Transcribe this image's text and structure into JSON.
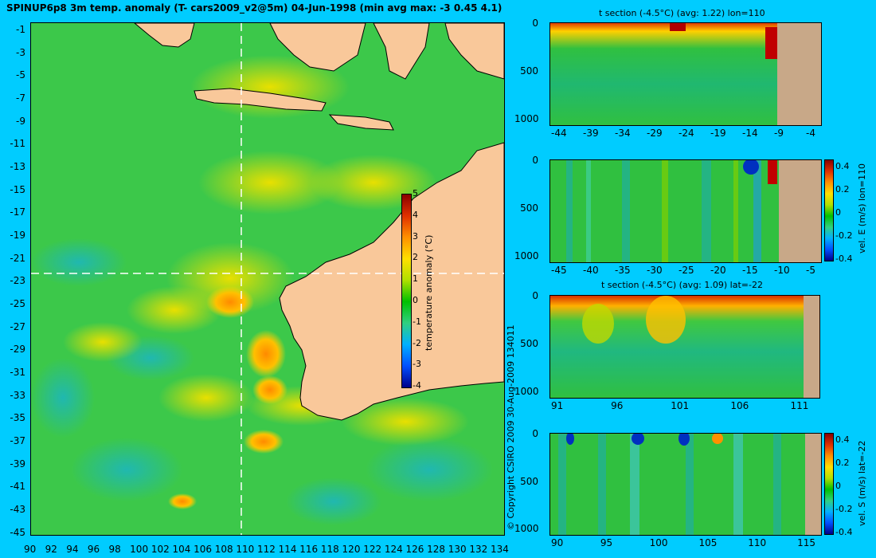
{
  "title": "SPINUP6p8 3m temp. anomaly (T- cars2009_v2@5m) 04-Jun-1998 (min avg max: -3 0.45 4.1)",
  "colors": {
    "background": "#00ccff",
    "land": "#f9c89a",
    "ocean_base": "#3cc84a",
    "section_land": "#c8a888"
  },
  "map": {
    "lat_ticks": [
      "-1",
      "-3",
      "-5",
      "-7",
      "-9",
      "-11",
      "-13",
      "-15",
      "-17",
      "-19",
      "-21",
      "-23",
      "-25",
      "-27",
      "-29",
      "-31",
      "-33",
      "-35",
      "-37",
      "-39",
      "-41",
      "-43",
      "-45"
    ],
    "lon_ticks": [
      "90",
      "92",
      "94",
      "96",
      "98",
      "100",
      "102",
      "104",
      "106",
      "108",
      "110",
      "112",
      "114",
      "116",
      "118",
      "120",
      "122",
      "124",
      "126",
      "128",
      "130",
      "132",
      "134"
    ],
    "colorbar": {
      "label": "temperature anomaly (°C)",
      "ticks": [
        "5",
        "4",
        "3",
        "2",
        "1",
        "0",
        "-1",
        "-2",
        "-3",
        "-4"
      ]
    },
    "copyright": "© Copyright CSIRO 2009   30-Aug-2009 134011"
  },
  "sections": [
    {
      "title": "t section (-4.5°C) (avg: 1.22) lon=110",
      "x_ticks": [
        "-44",
        "-39",
        "-34",
        "-29",
        "-24",
        "-19",
        "-14",
        "-9",
        "-4"
      ],
      "y_ticks": [
        "0",
        "500",
        "1000"
      ],
      "colorbar_label": "",
      "colorbar_ticks": []
    },
    {
      "title": "",
      "x_ticks": [
        "-45",
        "-40",
        "-35",
        "-30",
        "-25",
        "-20",
        "-15",
        "-10",
        "-5"
      ],
      "y_ticks": [
        "0",
        "500",
        "1000"
      ],
      "colorbar_label": "vel. E (m/s) lon=110",
      "colorbar_ticks": [
        "0.4",
        "0.2",
        "0",
        "-0.2",
        "-0.4"
      ]
    },
    {
      "title": "t section (-4.5°C) (avg: 1.09) lat=-22",
      "x_ticks": [
        "91",
        "96",
        "101",
        "106",
        "111"
      ],
      "y_ticks": [
        "0",
        "500",
        "1000"
      ],
      "colorbar_label": "",
      "colorbar_ticks": []
    },
    {
      "title": "",
      "x_ticks": [
        "90",
        "95",
        "100",
        "105",
        "110",
        "115"
      ],
      "y_ticks": [
        "0",
        "500",
        "1000"
      ],
      "colorbar_label": "vel. S (m/s) lat=-22",
      "colorbar_ticks": [
        "0.4",
        "0.2",
        "0",
        "-0.2",
        "-0.4"
      ]
    }
  ]
}
